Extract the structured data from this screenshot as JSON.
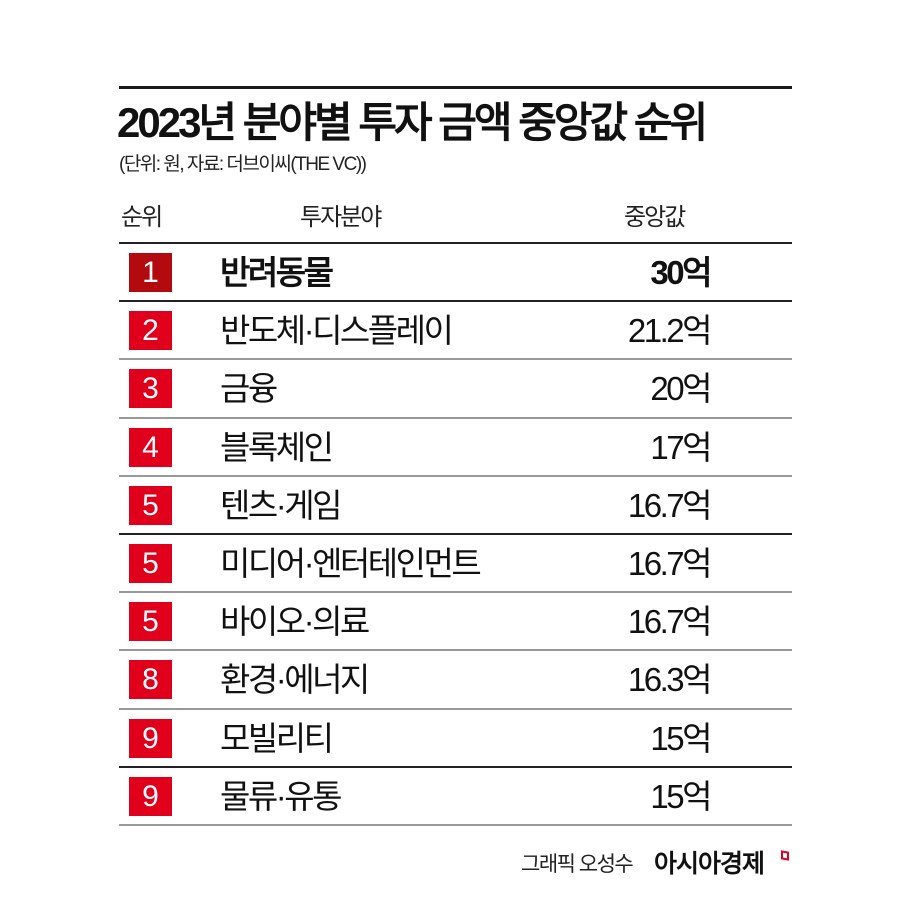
{
  "title": "2023년 분야별 투자 금액 중앙값 순위",
  "subtitle": "(단위: 원, 자료: 더브이씨(THE VC))",
  "columns": {
    "rank": "순위",
    "field": "투자분야",
    "value": "중앙값"
  },
  "rows": [
    {
      "rank": "1",
      "field": "반려동물",
      "value": "30억"
    },
    {
      "rank": "2",
      "field": "반도체·디스플레이",
      "value": "21.2억"
    },
    {
      "rank": "3",
      "field": "금융",
      "value": "20억"
    },
    {
      "rank": "4",
      "field": "블록체인",
      "value": "17억"
    },
    {
      "rank": "5",
      "field": "텐츠·게임",
      "value": "16.7억"
    },
    {
      "rank": "5",
      "field": "미디어·엔터테인먼트",
      "value": "16.7억"
    },
    {
      "rank": "5",
      "field": "바이오·의료",
      "value": "16.7억"
    },
    {
      "rank": "8",
      "field": "환경·에너지",
      "value": "16.3억"
    },
    {
      "rank": "9",
      "field": "모빌리티",
      "value": "15억"
    },
    {
      "rank": "9",
      "field": "물류·유통",
      "value": "15억"
    }
  ],
  "footer": {
    "credit": "그래픽 오성수",
    "brand": "아시아경제"
  },
  "colors": {
    "badge": "#e0001b",
    "badge_first": "#b30a10",
    "text": "#111111"
  },
  "chart_data": {
    "type": "table",
    "title": "2023년 분야별 투자 금액 중앙값 순위",
    "subtitle": "(단위: 원, 자료: 더브이씨(THE VC))",
    "columns": [
      "순위",
      "투자분야",
      "중앙값"
    ],
    "categories": [
      "반려동물",
      "반도체·디스플레이",
      "금융",
      "블록체인",
      "텐츠·게임",
      "미디어·엔터테인먼트",
      "바이오·의료",
      "환경·에너지",
      "모빌리티",
      "물류·유통"
    ],
    "ranks": [
      1,
      2,
      3,
      4,
      5,
      5,
      5,
      8,
      9,
      9
    ],
    "values": [
      30,
      21.2,
      20,
      17,
      16.7,
      16.7,
      16.7,
      16.3,
      15,
      15
    ],
    "unit": "억 원"
  }
}
